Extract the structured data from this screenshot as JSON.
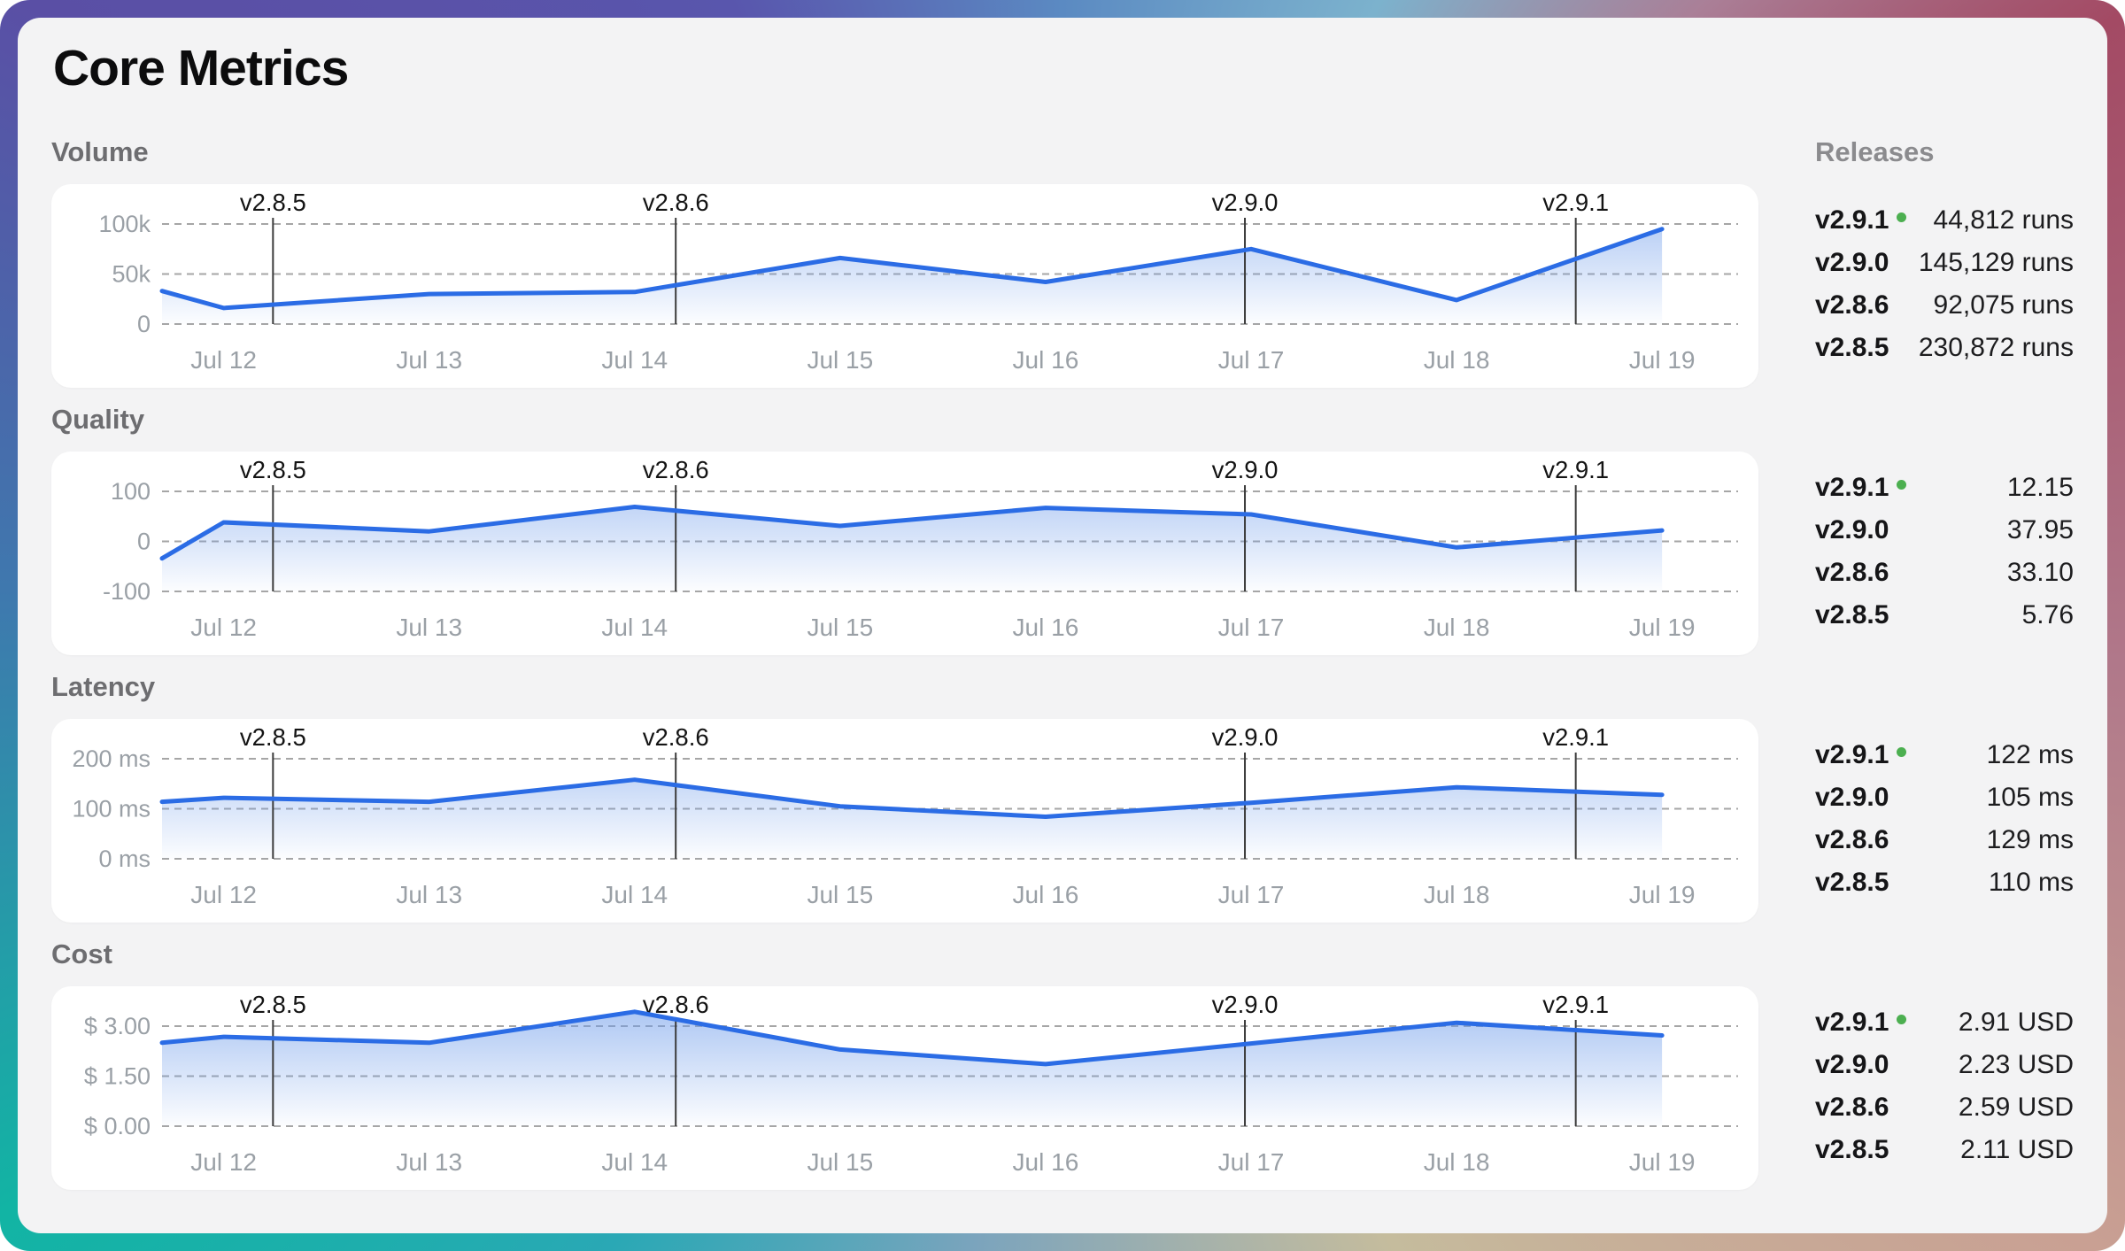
{
  "title": "Core Metrics",
  "releases_panel": {
    "header": "Releases"
  },
  "release_markers": [
    {
      "label": "v2.8.5",
      "day": 0.24
    },
    {
      "label": "v2.8.6",
      "day": 2.2
    },
    {
      "label": "v2.9.0",
      "day": 4.97
    },
    {
      "label": "v2.9.1",
      "day": 6.58
    }
  ],
  "x_axis": {
    "tick_labels": [
      "Jul 12",
      "Jul 13",
      "Jul 14",
      "Jul 15",
      "Jul 16",
      "Jul 17",
      "Jul 18",
      "Jul 19"
    ],
    "tick_days": [
      0,
      1,
      2,
      3,
      4,
      5,
      6,
      7
    ],
    "range": [
      -0.3,
      7.37
    ]
  },
  "colors": {
    "line": "#2b6ce5",
    "fill": "#6d9bea",
    "grid": "#a6a6a6",
    "tick_text": "#9aa0a6",
    "marker_line": "#3c3c3c",
    "marker_text": "#141414",
    "latest_dot": "#4caf50"
  },
  "chart_data": [
    {
      "type": "area",
      "title": "Volume",
      "x_days": [
        -0.3,
        0,
        1,
        2,
        3,
        4,
        5,
        6,
        7
      ],
      "values": [
        33000,
        16000,
        30000,
        32000,
        66000,
        42000,
        75000,
        24000,
        95000
      ],
      "y_gridlines": [
        {
          "value": 100000,
          "label": "100k"
        },
        {
          "value": 50000,
          "label": "50k"
        },
        {
          "value": 0,
          "label": "0"
        }
      ],
      "releases": [
        {
          "version": "v2.9.1",
          "latest": true,
          "value": "44,812 runs"
        },
        {
          "version": "v2.9.0",
          "latest": false,
          "value": "145,129 runs"
        },
        {
          "version": "v2.8.6",
          "latest": false,
          "value": "92,075 runs"
        },
        {
          "version": "v2.8.5",
          "latest": false,
          "value": "230,872 runs"
        }
      ]
    },
    {
      "type": "area",
      "title": "Quality",
      "x_days": [
        -0.3,
        0,
        1,
        2,
        3,
        4,
        5,
        6,
        7
      ],
      "values": [
        -34,
        38,
        20,
        69,
        31,
        67,
        54,
        -12,
        22
      ],
      "y_gridlines": [
        {
          "value": 100,
          "label": "100"
        },
        {
          "value": 0,
          "label": "0"
        },
        {
          "value": -100,
          "label": "-100"
        }
      ],
      "releases": [
        {
          "version": "v2.9.1",
          "latest": true,
          "value": "12.15"
        },
        {
          "version": "v2.9.0",
          "latest": false,
          "value": "37.95"
        },
        {
          "version": "v2.8.6",
          "latest": false,
          "value": "33.10"
        },
        {
          "version": "v2.8.5",
          "latest": false,
          "value": "5.76"
        }
      ]
    },
    {
      "type": "area",
      "title": "Latency",
      "x_days": [
        -0.3,
        0,
        1,
        2,
        3,
        4,
        5,
        6,
        7
      ],
      "values": [
        114,
        122,
        114,
        158,
        105,
        84,
        112,
        143,
        128
      ],
      "y_gridlines": [
        {
          "value": 200,
          "label": "200 ms"
        },
        {
          "value": 100,
          "label": "100 ms"
        },
        {
          "value": 0,
          "label": "0 ms"
        }
      ],
      "releases": [
        {
          "version": "v2.9.1",
          "latest": true,
          "value": "122 ms"
        },
        {
          "version": "v2.9.0",
          "latest": false,
          "value": "105 ms"
        },
        {
          "version": "v2.8.6",
          "latest": false,
          "value": "129 ms"
        },
        {
          "version": "v2.8.5",
          "latest": false,
          "value": "110 ms"
        }
      ]
    },
    {
      "type": "area",
      "title": "Cost",
      "x_days": [
        -0.3,
        0,
        1,
        2,
        3,
        4,
        5,
        6,
        7
      ],
      "values": [
        2.5,
        2.68,
        2.5,
        3.43,
        2.3,
        1.86,
        2.48,
        3.1,
        2.72
      ],
      "y_gridlines": [
        {
          "value": 3.0,
          "label": "$ 3.00"
        },
        {
          "value": 1.5,
          "label": "$ 1.50"
        },
        {
          "value": 0.0,
          "label": "$ 0.00"
        }
      ],
      "releases": [
        {
          "version": "v2.9.1",
          "latest": true,
          "value": "2.91 USD"
        },
        {
          "version": "v2.9.0",
          "latest": false,
          "value": "2.23 USD"
        },
        {
          "version": "v2.8.6",
          "latest": false,
          "value": "2.59 USD"
        },
        {
          "version": "v2.8.5",
          "latest": false,
          "value": "2.11 USD"
        }
      ]
    }
  ]
}
